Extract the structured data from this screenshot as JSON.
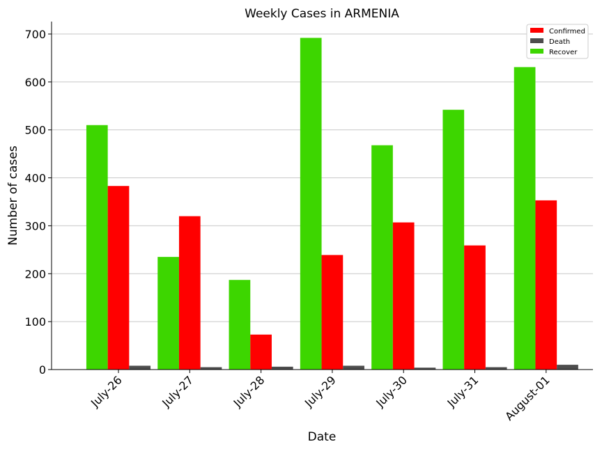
{
  "chart_data": {
    "type": "bar",
    "title": "Weekly Cases in ARMENIA",
    "xlabel": "Date",
    "ylabel": "Number of cases",
    "categories": [
      "July-26",
      "July-27",
      "July-28",
      "July-29",
      "July-30",
      "July-31",
      "August-01"
    ],
    "series": [
      {
        "name": "Recover",
        "color": "#3dd600",
        "values": [
          510,
          235,
          187,
          692,
          468,
          542,
          631
        ]
      },
      {
        "name": "Confirmed",
        "color": "#ff0000",
        "values": [
          383,
          320,
          73,
          239,
          307,
          259,
          353
        ]
      },
      {
        "name": "Death",
        "color": "#4d4d4d",
        "values": [
          8,
          5,
          6,
          8,
          4,
          5,
          10
        ]
      }
    ],
    "legend_order": [
      "Confirmed",
      "Death",
      "Recover"
    ],
    "legend_position": "top-right",
    "ylim": [
      0,
      726
    ],
    "yticks": [
      0,
      100,
      200,
      300,
      400,
      500,
      600,
      700
    ],
    "grid": "horizontal"
  }
}
